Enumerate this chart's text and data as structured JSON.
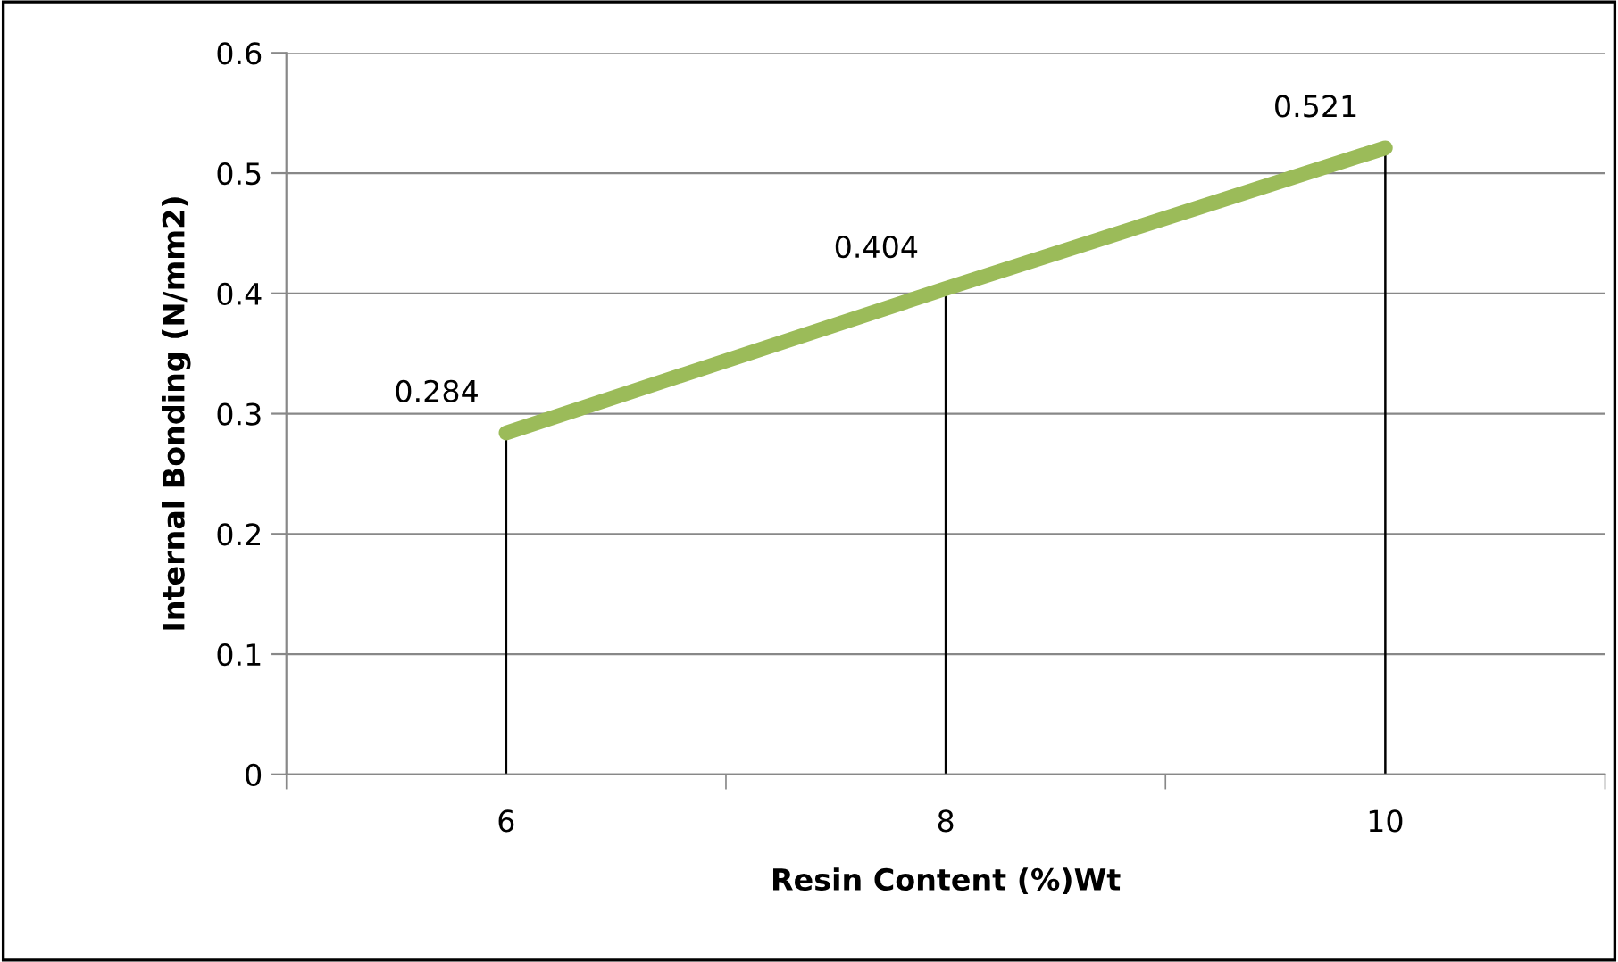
{
  "chart_data": {
    "type": "line",
    "xlabel": "Resin Content (%)Wt",
    "ylabel": "Internal Bonding (N/mm2)",
    "categories": [
      "6",
      "8",
      "10"
    ],
    "series": [
      {
        "color": "#9bbb59",
        "values": [
          0.284,
          0.404,
          0.521
        ],
        "errors": [
          [
            0,
            0.284
          ],
          [
            0,
            0.404
          ],
          [
            0,
            0.521
          ]
        ]
      }
    ],
    "ylim": [
      0,
      0.6
    ],
    "yticks": [
      {
        "value": 0,
        "label": "0"
      },
      0.1,
      0.2,
      0.3,
      0.4,
      0.5,
      0.6
    ],
    "grid": "y",
    "data_labels": true,
    "marker": "none",
    "legend": false
  }
}
